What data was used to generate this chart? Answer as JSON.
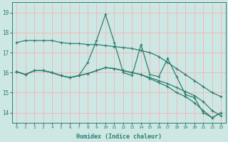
{
  "xlabel": "Humidex (Indice chaleur)",
  "background_color": "#cde8e4",
  "grid_color": "#f2b8b8",
  "line_color": "#2e7d6e",
  "x_values": [
    0,
    1,
    2,
    3,
    4,
    5,
    6,
    7,
    8,
    9,
    10,
    11,
    12,
    13,
    14,
    15,
    16,
    17,
    18,
    19,
    20,
    21,
    22,
    23
  ],
  "series1": [
    17.5,
    17.6,
    17.6,
    17.6,
    17.6,
    17.5,
    17.45,
    17.45,
    17.4,
    17.4,
    17.35,
    17.3,
    17.25,
    17.2,
    17.1,
    17.0,
    16.8,
    16.5,
    16.2,
    15.9,
    15.6,
    15.3,
    15.0,
    14.8
  ],
  "series2": [
    16.05,
    15.9,
    16.1,
    16.1,
    16.0,
    15.85,
    15.75,
    15.85,
    15.95,
    16.1,
    16.25,
    16.2,
    16.1,
    16.0,
    15.9,
    15.75,
    15.6,
    15.45,
    15.25,
    15.05,
    14.85,
    14.55,
    14.1,
    13.85
  ],
  "series3": [
    16.05,
    15.9,
    16.1,
    16.1,
    16.0,
    15.85,
    15.75,
    15.85,
    16.5,
    17.6,
    18.9,
    17.5,
    16.0,
    15.85,
    17.4,
    15.9,
    15.8,
    16.7,
    15.8,
    14.9,
    14.75,
    14.0,
    13.75,
    14.0
  ],
  "series4": [
    16.05,
    15.9,
    16.1,
    16.1,
    16.0,
    15.85,
    15.75,
    15.85,
    15.95,
    16.1,
    16.25,
    16.2,
    16.1,
    16.0,
    15.9,
    15.7,
    15.5,
    15.3,
    15.0,
    14.8,
    14.5,
    14.1,
    13.75,
    14.0
  ],
  "ylim": [
    13.5,
    19.5
  ],
  "yticks": [
    14,
    15,
    16,
    17,
    18,
    19
  ],
  "xlim": [
    -0.5,
    23.5
  ]
}
